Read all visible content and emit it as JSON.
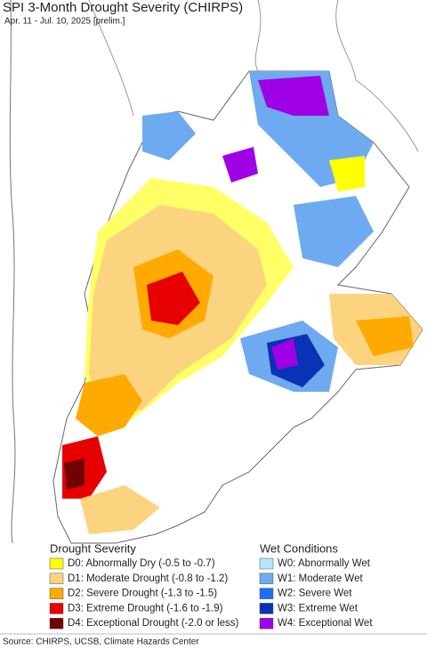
{
  "title": "SPI 3-Month Drought Severity (CHIRPS)",
  "subtitle": "Apr. 11 - Jul. 10, 2025 [prelim.]",
  "legend": {
    "drought": {
      "title": "Drought Severity",
      "items": [
        {
          "label": "D0: Abnormally Dry (-0.5 to -0.7)",
          "color": "#ffff00"
        },
        {
          "label": "D1: Moderate Drought (-0.8 to -1.2)",
          "color": "#fcd37f"
        },
        {
          "label": "D2: Severe Drought (-1.3 to -1.5)",
          "color": "#ffaa00"
        },
        {
          "label": "D3: Extreme Drought (-1.6 to -1.9)",
          "color": "#e60000"
        },
        {
          "label": "D4: Exceptional Drought (-2.0 or less)",
          "color": "#730000"
        }
      ]
    },
    "wet": {
      "title": "Wet Conditions",
      "items": [
        {
          "label": "W0: Abnormally Wet",
          "color": "#b4e6fa"
        },
        {
          "label": "W1: Moderate Wet",
          "color": "#6eaaf0"
        },
        {
          "label": "W2: Severe Wet",
          "color": "#1e6ef5"
        },
        {
          "label": "W3: Extreme Wet",
          "color": "#0a32b4"
        },
        {
          "label": "W4: Exceptional Wet",
          "color": "#a000e6"
        }
      ]
    }
  },
  "source": "Source: CHIRPS, UCSB, Climate Hazards Center"
}
